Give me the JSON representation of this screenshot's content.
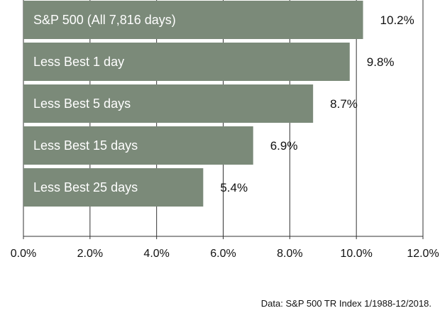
{
  "chart_data": {
    "type": "bar",
    "orientation": "horizontal",
    "categories": [
      "S&P 500 (All 7,816 days)",
      "Less Best 1 day",
      "Less Best 5 days",
      "Less Best 15 days",
      "Less Best 25 days"
    ],
    "values": [
      10.2,
      9.8,
      8.7,
      6.9,
      5.4
    ],
    "value_labels": [
      "10.2%",
      "9.8%",
      "8.7%",
      "6.9%",
      "5.4%"
    ],
    "xlim": [
      0,
      12
    ],
    "ticks": [
      0,
      2,
      4,
      6,
      8,
      10,
      12
    ],
    "tick_labels": [
      "0.0%",
      "2.0%",
      "4.0%",
      "6.0%",
      "8.0%",
      "10.0%",
      "12.0%"
    ],
    "grid": true,
    "bar_color": "#7b8a79",
    "grid_color": "#333333",
    "note": "Data: S&P 500 TR Index 1/1988-12/2018."
  }
}
